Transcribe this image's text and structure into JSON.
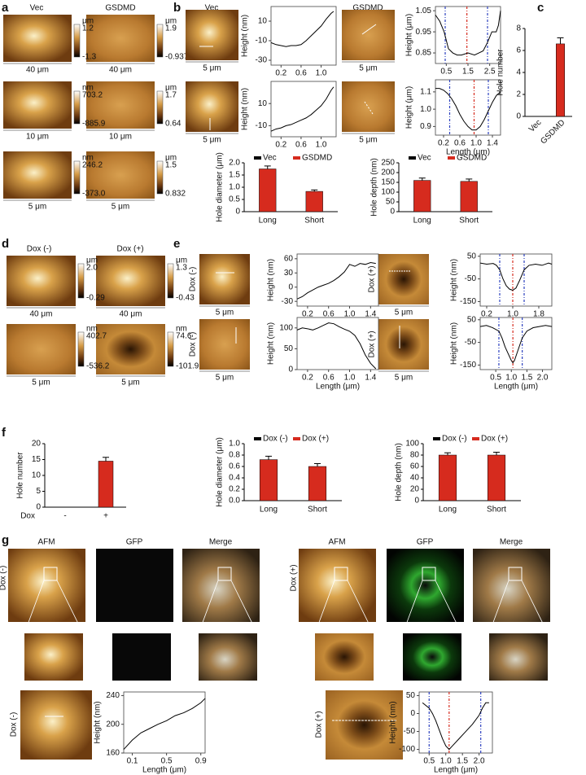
{
  "panel_labels": [
    "a",
    "b",
    "c",
    "d",
    "e",
    "f",
    "g"
  ],
  "a": {
    "columns": [
      "Vec",
      "GSDMD"
    ],
    "scale_bars": [
      "40 μm",
      "40 μm",
      "10 μm",
      "10 μm",
      "5 μm",
      "5 μm"
    ],
    "colorbars": [
      {
        "unit": "μm",
        "max": "1.2",
        "min": "-1.3"
      },
      {
        "unit": "μm",
        "max": "1.9",
        "min": "-0.937"
      },
      {
        "unit": "nm",
        "max": "703.2",
        "min": "-885.9"
      },
      {
        "unit": "μm",
        "max": "1.7",
        "min": "0.64"
      },
      {
        "unit": "nm",
        "max": "246.2",
        "min": "-373.0"
      },
      {
        "unit": "μm",
        "max": "1.5",
        "min": "0.832"
      }
    ]
  },
  "b": {
    "columns": [
      "Vec",
      "GSDMD"
    ],
    "scale_bars": [
      "5 μm",
      "5 μm",
      "5 μm",
      "5 μm"
    ]
  },
  "d": {
    "columns": [
      "Dox (-)",
      "Dox (+)"
    ],
    "scale_bars": [
      "40 μm",
      "40 μm",
      "5 μm",
      "5 μm"
    ],
    "colorbars": [
      {
        "unit": "μm",
        "max": "2.0",
        "min": "-0.29"
      },
      {
        "unit": "μm",
        "max": "1.3",
        "min": "-0.43"
      },
      {
        "unit": "nm",
        "max": "402.7",
        "min": "-536.2"
      },
      {
        "unit": "nm",
        "max": "74.6",
        "min": "-101.9"
      }
    ]
  },
  "e": {
    "row_labels": [
      "Dox (-)",
      "Dox (-)",
      "Dox (+)",
      "Dox (+)"
    ],
    "scale_bars": [
      "5 μm",
      "5 μm",
      "5 μm",
      "5 μm"
    ]
  },
  "g": {
    "columns": [
      "AFM",
      "GFP",
      "Merge",
      "AFM",
      "GFP",
      "Merge"
    ],
    "row_labels": [
      "Dox (-)",
      "Dox (+)",
      "Dox (-)",
      "Dox (+)"
    ]
  },
  "chart_data": [
    {
      "type": "line",
      "ylabel": "Height (nm)",
      "color": "#000000",
      "x": [
        0,
        0.1,
        0.2,
        0.3,
        0.4,
        0.5,
        0.6,
        0.7,
        0.8,
        0.9,
        1.0,
        1.1,
        1.2,
        1.25
      ],
      "values": [
        -12,
        -14,
        -15,
        -16,
        -15,
        -15,
        -14,
        -10,
        -5,
        0,
        5,
        12,
        18,
        20
      ],
      "xlim": [
        0,
        1.3
      ],
      "xticks": [
        0.2,
        0.6,
        {
          "value": 1.0,
          "label": "1.0"
        }
      ],
      "ylim": [
        -35,
        25
      ],
      "yticks": [
        -30,
        -10,
        10
      ]
    },
    {
      "type": "line",
      "ylabel": "Height (nm)",
      "color": "#000000",
      "x": [
        0,
        0.1,
        0.2,
        0.3,
        0.4,
        0.5,
        0.6,
        0.7,
        0.8,
        0.9,
        1.0,
        1.1,
        1.2,
        1.25
      ],
      "values": [
        -15,
        -13,
        -12,
        -10,
        -9,
        -7,
        -5,
        -3,
        0,
        4,
        8,
        14,
        22,
        25
      ],
      "xlim": [
        0,
        1.3
      ],
      "xticks": [
        0.2,
        0.6,
        {
          "value": 1.0,
          "label": "1.0"
        }
      ],
      "ylim": [
        -20,
        30
      ],
      "yticks": [
        -10,
        10
      ]
    },
    {
      "type": "line",
      "ylabel": "Height (μm)",
      "color": "#000000",
      "x": [
        0,
        0.2,
        0.4,
        0.6,
        0.8,
        1.0,
        1.2,
        1.5,
        1.8,
        2.0,
        2.2,
        2.4,
        2.6,
        2.8,
        2.9,
        3.0
      ],
      "values": [
        1.03,
        1.0,
        0.95,
        0.87,
        0.85,
        0.84,
        0.84,
        0.85,
        0.84,
        0.85,
        0.86,
        0.9,
        0.95,
        0.95,
        0.98,
        1.05
      ],
      "vlines": [
        {
          "x": 0.45,
          "color": "#2b3fbf"
        },
        {
          "x": 1.45,
          "color": "#d62b1e"
        },
        {
          "x": 2.4,
          "color": "#2b3fbf"
        }
      ],
      "xlim": [
        0,
        3
      ],
      "xticks": [
        0.5,
        1.5,
        2.5
      ],
      "ylim": [
        0.8,
        1.07
      ],
      "yticks": [
        0.85,
        0.95,
        1.05
      ]
    },
    {
      "type": "line",
      "ylabel": "Height (μm)",
      "xlabel": "Length (μm)",
      "color": "#000000",
      "x": [
        0,
        0.1,
        0.2,
        0.3,
        0.4,
        0.5,
        0.6,
        0.7,
        0.8,
        0.9,
        1.0,
        1.1,
        1.2,
        1.3,
        1.4,
        1.5,
        1.6
      ],
      "values": [
        1.12,
        1.12,
        1.11,
        1.09,
        1.06,
        1.02,
        0.97,
        0.93,
        0.9,
        0.88,
        0.88,
        0.9,
        0.94,
        0.99,
        1.04,
        1.08,
        1.1
      ],
      "vlines": [
        {
          "x": 0.35,
          "color": "#2b3fbf"
        },
        {
          "x": 0.95,
          "color": "#d62b1e"
        },
        {
          "x": 1.3,
          "color": "#2b3fbf"
        }
      ],
      "xlim": [
        0,
        1.6
      ],
      "xticks": [
        0.2,
        0.6,
        {
          "value": 1.0,
          "label": "1.0"
        },
        1.4
      ],
      "ylim": [
        0.85,
        1.17
      ],
      "yticks": [
        0.9,
        {
          "value": 1.0,
          "label": "1.0"
        },
        1.1
      ]
    },
    {
      "type": "bar",
      "ylabel": "Hole diameter (μm)",
      "categories": [
        "Long",
        "Short"
      ],
      "color": "#d62b1e",
      "values": [
        1.75,
        0.83
      ],
      "errors": [
        0.12,
        0.06
      ],
      "legend": [
        {
          "name": "Vec",
          "color": "#000000"
        },
        {
          "name": "GSDMD",
          "color": "#d62b1e"
        }
      ],
      "ylim": [
        0,
        2.0
      ],
      "yticks": [
        0,
        0.5,
        {
          "value": 1.0,
          "label": "1.0"
        },
        1.5,
        {
          "value": 2.0,
          "label": "2.0"
        }
      ]
    },
    {
      "type": "bar",
      "ylabel": "Hole depth (nm)",
      "categories": [
        "Long",
        "Short"
      ],
      "color": "#d62b1e",
      "values": [
        160,
        155
      ],
      "errors": [
        12,
        12
      ],
      "legend": [
        {
          "name": "Vec",
          "color": "#000000"
        },
        {
          "name": "GSDMD",
          "color": "#d62b1e"
        }
      ],
      "ylim": [
        0,
        250
      ],
      "yticks": [
        0,
        50,
        100,
        150,
        200,
        250
      ]
    },
    {
      "type": "bar",
      "ylabel": "Hole number",
      "categories": [
        "Vec",
        "GSDMD"
      ],
      "color": "#d62b1e",
      "rotate_labels": true,
      "values": [
        0,
        6.6
      ],
      "errors": [
        0,
        0.55
      ],
      "ylim": [
        0,
        8
      ],
      "yticks": [
        0,
        2,
        4,
        6,
        8
      ]
    },
    {
      "type": "line",
      "ylabel": "Height (nm)",
      "color": "#000000",
      "x": [
        0,
        0.1,
        0.2,
        0.3,
        0.4,
        0.5,
        0.6,
        0.7,
        0.8,
        0.9,
        1.0,
        1.1,
        1.2,
        1.3,
        1.4,
        1.5
      ],
      "values": [
        -25,
        -20,
        -12,
        -6,
        0,
        4,
        8,
        14,
        22,
        32,
        48,
        44,
        50,
        48,
        52,
        50
      ],
      "xlim": [
        0,
        1.55
      ],
      "xticks": [
        0.2,
        0.6,
        {
          "value": 1.0,
          "label": "1.0"
        },
        1.4
      ],
      "ylim": [
        -40,
        70
      ],
      "yticks": [
        -30,
        0,
        30,
        60
      ]
    },
    {
      "type": "line",
      "ylabel": "Height (nm)",
      "xlabel": "Length (μm)",
      "color": "#000000",
      "x": [
        0,
        0.1,
        0.2,
        0.3,
        0.4,
        0.5,
        0.6,
        0.7,
        0.8,
        0.9,
        1.0,
        1.1,
        1.2,
        1.3,
        1.4,
        1.5
      ],
      "values": [
        95,
        100,
        98,
        95,
        100,
        106,
        112,
        110,
        103,
        97,
        92,
        82,
        62,
        35,
        15,
        2
      ],
      "xlim": [
        0,
        1.55
      ],
      "xticks": [
        0.2,
        0.6,
        {
          "value": 1.0,
          "label": "1.0"
        },
        1.4
      ],
      "ylim": [
        0,
        125
      ],
      "yticks": [
        0,
        50,
        100
      ]
    },
    {
      "type": "line",
      "ylabel": "Height (nm)",
      "color": "#000000",
      "x": [
        0,
        0.2,
        0.4,
        0.5,
        0.6,
        0.7,
        0.8,
        0.9,
        1.0,
        1.1,
        1.2,
        1.35,
        1.5,
        1.7,
        1.9,
        2.1,
        2.2
      ],
      "values": [
        20,
        15,
        18,
        10,
        -10,
        -50,
        -80,
        -95,
        -100,
        -90,
        -60,
        -10,
        10,
        15,
        10,
        20,
        15
      ],
      "vlines": [
        {
          "x": 0.6,
          "color": "#2b3fbf"
        },
        {
          "x": 1.0,
          "color": "#d62b1e"
        },
        {
          "x": 1.35,
          "color": "#2b3fbf"
        }
      ],
      "xlim": [
        0,
        2.2
      ],
      "xticks": [
        0.2,
        {
          "value": 1.0,
          "label": "1.0"
        },
        1.8
      ],
      "ylim": [
        -170,
        60
      ],
      "yticks": [
        50,
        -50,
        -150
      ]
    },
    {
      "type": "line",
      "ylabel": "Height (nm)",
      "xlabel": "Length (μm)",
      "color": "#000000",
      "x": [
        0,
        0.2,
        0.4,
        0.6,
        0.7,
        0.8,
        0.9,
        1.0,
        1.05,
        1.1,
        1.2,
        1.35,
        1.5,
        1.7,
        1.9,
        2.1,
        2.3
      ],
      "values": [
        20,
        25,
        15,
        0,
        -30,
        -70,
        -100,
        -130,
        -140,
        -130,
        -90,
        -30,
        0,
        15,
        20,
        25,
        20
      ],
      "vlines": [
        {
          "x": 0.6,
          "color": "#2b3fbf"
        },
        {
          "x": 1.05,
          "color": "#d62b1e"
        },
        {
          "x": 1.35,
          "color": "#2b3fbf"
        }
      ],
      "xlim": [
        0,
        2.3
      ],
      "xticks": [
        0.5,
        {
          "value": 1.0,
          "label": "1.0"
        },
        1.5,
        {
          "value": 2.0,
          "label": "2.0"
        }
      ],
      "ylim": [
        -170,
        60
      ],
      "yticks": [
        50,
        -50,
        -150
      ]
    },
    {
      "type": "bar",
      "ylabel": "Hole number",
      "xlabel": "Dox",
      "categories": [
        "-",
        "+"
      ],
      "color": "#d62b1e",
      "values": [
        0,
        14.5
      ],
      "errors": [
        0,
        1.2
      ],
      "ylim": [
        0,
        20
      ],
      "yticks": [
        0,
        5,
        10,
        15,
        20
      ]
    },
    {
      "type": "bar",
      "ylabel": "Hole diameter (μm)",
      "categories": [
        "Long",
        "Short"
      ],
      "color": "#d62b1e",
      "values": [
        0.72,
        0.6
      ],
      "errors": [
        0.06,
        0.05
      ],
      "legend": [
        {
          "name": "Dox (-)",
          "color": "#000000"
        },
        {
          "name": "Dox (+)",
          "color": "#d62b1e"
        }
      ],
      "ylim": [
        0,
        1.0
      ],
      "yticks": [
        {
          "value": 0,
          "label": "0.0"
        },
        0.2,
        0.4,
        0.6,
        0.8,
        {
          "value": 1.0,
          "label": "1.0"
        }
      ]
    },
    {
      "type": "bar",
      "ylabel": "Hole depth (nm)",
      "categories": [
        "Long",
        "Short"
      ],
      "color": "#d62b1e",
      "values": [
        80,
        80
      ],
      "errors": [
        4,
        5
      ],
      "legend": [
        {
          "name": "Dox (-)",
          "color": "#000000"
        },
        {
          "name": "Dox (+)",
          "color": "#d62b1e"
        }
      ],
      "ylim": [
        0,
        100
      ],
      "yticks": [
        0,
        20,
        40,
        60,
        80,
        100
      ]
    },
    {
      "type": "line",
      "ylabel": "Height (nm)",
      "xlabel": "Length (μm)",
      "color": "#000000",
      "x": [
        0,
        0.1,
        0.2,
        0.3,
        0.4,
        0.5,
        0.6,
        0.7,
        0.8,
        0.9,
        0.95
      ],
      "values": [
        165,
        178,
        188,
        194,
        200,
        205,
        212,
        216,
        222,
        230,
        236
      ],
      "xlim": [
        0,
        0.95
      ],
      "xticks": [
        0.1,
        0.5,
        0.9
      ],
      "ylim": [
        160,
        245
      ],
      "yticks": [
        160,
        200,
        240
      ]
    },
    {
      "type": "line",
      "ylabel": "Height (nm)",
      "xlabel": "Length (μm)",
      "color": "#000000",
      "x": [
        0.3,
        0.5,
        0.6,
        0.7,
        0.8,
        0.9,
        1.0,
        1.1,
        1.2,
        1.4,
        1.6,
        1.8,
        2.0,
        2.1,
        2.2,
        2.3
      ],
      "values": [
        30,
        15,
        0,
        -20,
        -45,
        -70,
        -90,
        -100,
        -90,
        -70,
        -50,
        -30,
        -5,
        15,
        30,
        30
      ],
      "vlines": [
        {
          "x": 0.5,
          "color": "#2b3fbf"
        },
        {
          "x": 1.1,
          "color": "#d62b1e"
        },
        {
          "x": 2.05,
          "color": "#2b3fbf"
        }
      ],
      "xlim": [
        0.2,
        2.4
      ],
      "xticks": [
        0.5,
        {
          "value": 1.0,
          "label": "1.0"
        },
        1.5,
        {
          "value": 2.0,
          "label": "2.0"
        }
      ],
      "ylim": [
        -110,
        60
      ],
      "yticks": [
        50,
        0,
        -50,
        -100
      ]
    }
  ]
}
